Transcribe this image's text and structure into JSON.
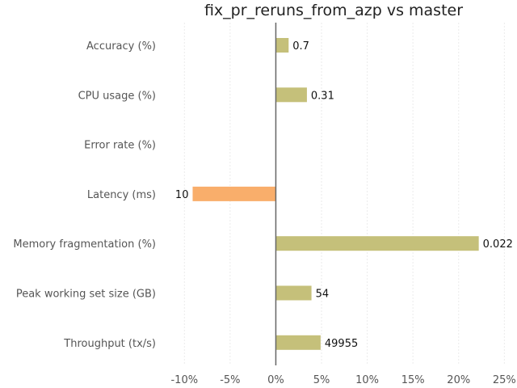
{
  "chart_data": {
    "type": "bar",
    "orientation": "horizontal",
    "title": "fix_pr_reruns_from_azp vs master",
    "categories": [
      "Accuracy (%)",
      "CPU usage (%)",
      "Error rate (%)",
      "Latency (ms)",
      "Memory fragmentation (%)",
      "Peak working set size (GB)",
      "Throughput (tx/s)"
    ],
    "values": [
      1.4,
      3.4,
      null,
      -9.1,
      22.2,
      3.9,
      4.9
    ],
    "value_unit": "%",
    "data_labels": [
      "0.7",
      "0.31",
      "",
      "10",
      "0.022",
      "54",
      "49955"
    ],
    "bar_colors": [
      "#c5c07a",
      "#c5c07a",
      null,
      "#f9ae6b",
      "#c5c07a",
      "#c5c07a",
      "#c5c07a"
    ],
    "xlim": [
      -12.5,
      25.5
    ],
    "xticks": [
      -10,
      -5,
      0,
      5,
      10,
      15,
      20,
      25
    ],
    "xtick_labels": [
      "-10%",
      "-5%",
      "0%",
      "5%",
      "10%",
      "15%",
      "20%",
      "25%"
    ],
    "grid": true,
    "xlabel": "",
    "ylabel": ""
  },
  "colors": {
    "positive": "#c5c07a",
    "negative": "#f9ae6b",
    "zero_line": "#666666",
    "grid": "#ebebeb"
  }
}
